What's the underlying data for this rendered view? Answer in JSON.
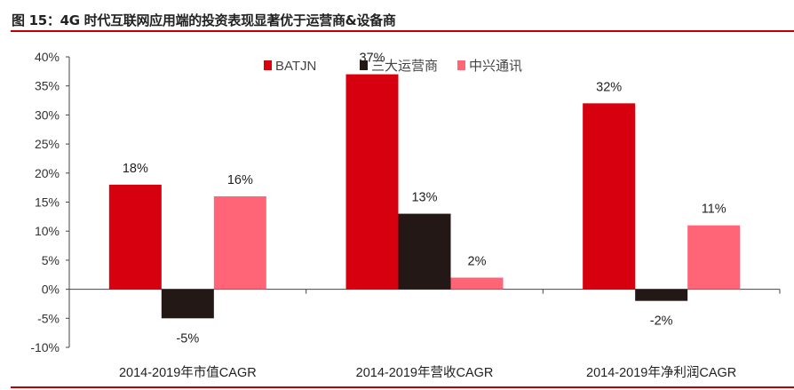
{
  "chart_data": {
    "type": "bar",
    "title": "图 15：4G 时代互联网应用端的投资表现显著优于运营商&设备商",
    "categories": [
      "2014-2019年市值CAGR",
      "2014-2019年营收CAGR",
      "2014-2019年净利润CAGR"
    ],
    "series": [
      {
        "name": "BATJN",
        "color": "#D7000F",
        "values": [
          18,
          37,
          32
        ],
        "labels": [
          "18%",
          "37%",
          "32%"
        ]
      },
      {
        "name": "三大运营商",
        "color": "#231815",
        "values": [
          -5,
          13,
          -2
        ],
        "labels": [
          "-5%",
          "13%",
          "-2%"
        ]
      },
      {
        "name": "中兴通讯",
        "color": "#FF6477",
        "values": [
          16,
          2,
          11
        ],
        "labels": [
          "16%",
          "2%",
          "11%"
        ]
      }
    ],
    "ylim": [
      -10,
      40
    ],
    "yticks": [
      "-10%",
      "-5%",
      "0%",
      "5%",
      "10%",
      "15%",
      "20%",
      "25%",
      "30%",
      "35%",
      "40%"
    ],
    "xlabel": "",
    "ylabel": "",
    "grid": false,
    "legend": "top-center"
  }
}
